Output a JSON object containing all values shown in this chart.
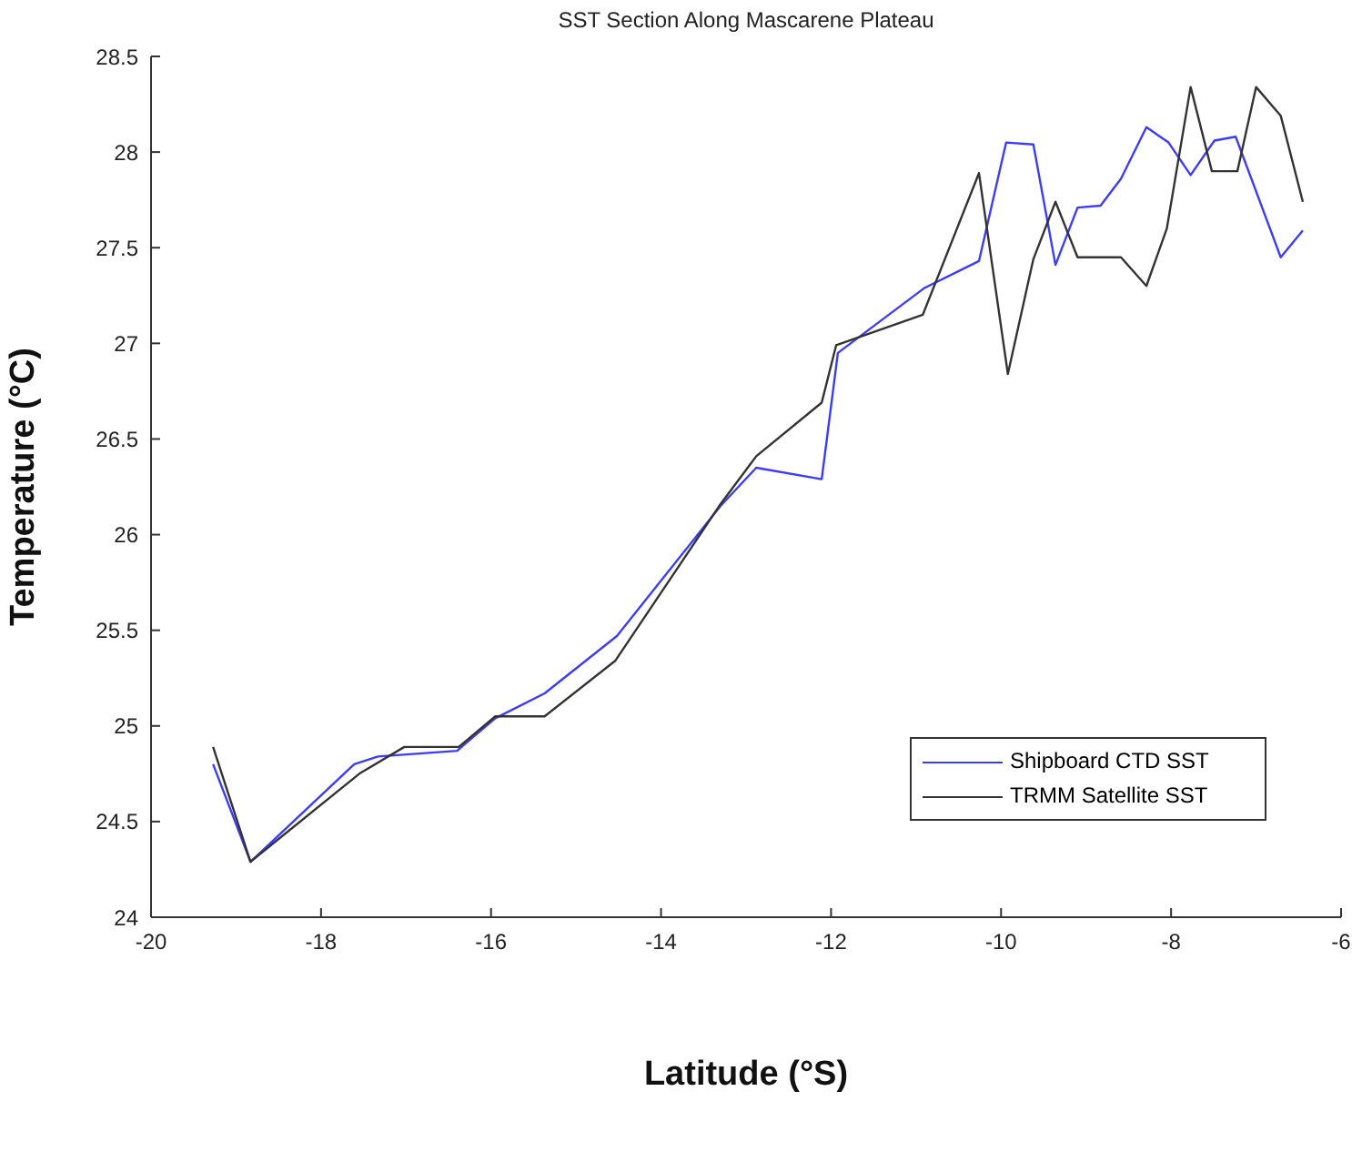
{
  "chart_data": {
    "type": "line",
    "title": "SST Section Along Mascarene Plateau",
    "xlabel": "Latitude (°S)",
    "ylabel": "Temperature (°C)",
    "xlim": [
      -20,
      -6
    ],
    "xticks": [
      -20,
      -18,
      -16,
      -14,
      -12,
      -10,
      -8,
      -6
    ],
    "ylim": [
      24,
      28.5
    ],
    "yticks": [
      24,
      24.5,
      25,
      25.5,
      26,
      26.5,
      27,
      27.5,
      28,
      28.5
    ],
    "grid": false,
    "legend": "right",
    "marker": "none",
    "line_style": "solid",
    "series": [
      {
        "name": "Shipboard CTD SST",
        "color": "#3b3bff",
        "x": [
          -19.27,
          -18.83,
          -17.61,
          -17.33,
          -16.4,
          -15.95,
          -15.37,
          -14.52,
          -13.3,
          -12.88,
          -12.11,
          -11.92,
          -10.9,
          -10.26,
          -9.94,
          -9.62,
          -9.36,
          -9.1,
          -8.83,
          -8.59,
          -8.29,
          -8.03,
          -7.77,
          -7.49,
          -7.24,
          -6.71,
          -6.45
        ],
        "values": [
          24.8,
          24.29,
          24.8,
          24.84,
          24.87,
          25.04,
          25.17,
          25.47,
          26.15,
          26.35,
          26.29,
          26.95,
          27.29,
          27.43,
          28.05,
          28.04,
          27.41,
          27.71,
          27.72,
          27.86,
          28.13,
          28.05,
          27.88,
          28.06,
          28.08,
          27.45,
          27.59
        ]
      },
      {
        "name": "TRMM Satellite SST",
        "color": "#333333",
        "x": [
          -19.27,
          -18.83,
          -17.55,
          -17.02,
          -16.38,
          -15.95,
          -15.37,
          -14.54,
          -13.3,
          -12.88,
          -12.11,
          -11.94,
          -10.92,
          -10.26,
          -9.92,
          -9.62,
          -9.36,
          -9.1,
          -8.59,
          -8.29,
          -8.05,
          -7.77,
          -7.52,
          -7.22,
          -7.0,
          -6.71,
          -6.45
        ],
        "values": [
          24.89,
          24.29,
          24.75,
          24.89,
          24.89,
          25.05,
          25.05,
          25.34,
          26.16,
          26.41,
          26.69,
          26.99,
          27.15,
          27.89,
          26.84,
          27.44,
          27.74,
          27.45,
          27.45,
          27.3,
          27.6,
          28.34,
          27.9,
          27.9,
          28.34,
          28.19,
          27.74
        ]
      }
    ]
  }
}
